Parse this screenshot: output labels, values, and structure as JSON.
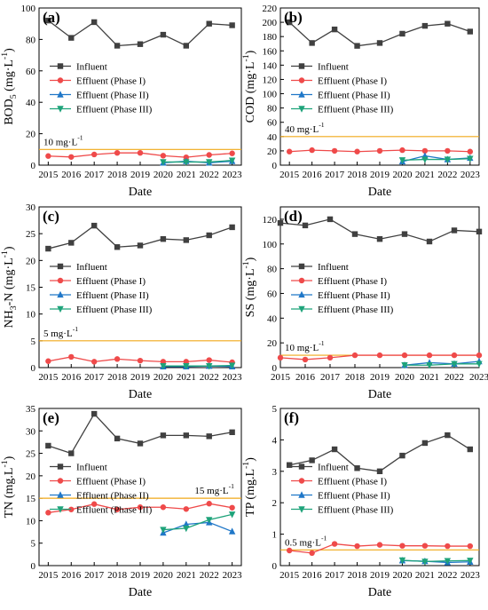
{
  "figure": {
    "x_label": "Date",
    "legend_items": [
      "Influent",
      "Effluent (Phase I)",
      "Effluent (Phase II)",
      "Effluent (Phase III)"
    ],
    "series_colors": {
      "Influent": "#404040",
      "Effluent (Phase I)": "#ef4a4a",
      "Effluent (Phase II)": "#1f77c8",
      "Effluent (Phase III)": "#1ea37a",
      "limit": "#f0a818"
    }
  },
  "chart_data": [
    {
      "type": "line",
      "panel_label": "(a)",
      "ylabel": "BOD5 (mg·L-1)",
      "xlabel": "Date",
      "x": [
        2015,
        2016,
        2017,
        2018,
        2019,
        2020,
        2021,
        2022,
        2023
      ],
      "xlim": [
        2014.6,
        2023.4
      ],
      "ylim": [
        0,
        100
      ],
      "yticks": [
        0,
        20,
        40,
        60,
        80,
        100
      ],
      "limit": {
        "value": 10,
        "label": "10 mg·L-1"
      },
      "legend_position": "center-left",
      "series": [
        {
          "name": "Influent",
          "marker": "square",
          "values": [
            92,
            81,
            91,
            76,
            77,
            83,
            76,
            90,
            89
          ]
        },
        {
          "name": "Effluent (Phase I)",
          "marker": "circle",
          "values": [
            5.8,
            5.2,
            6.8,
            7.8,
            7.8,
            6,
            5,
            6.5,
            7.5
          ]
        },
        {
          "name": "Effluent (Phase II)",
          "marker": "triangle-up",
          "values": [
            null,
            null,
            null,
            null,
            null,
            1.5,
            2.5,
            1.5,
            2.5
          ]
        },
        {
          "name": "Effluent (Phase III)",
          "marker": "triangle-down",
          "values": [
            null,
            null,
            null,
            null,
            null,
            2,
            2,
            2,
            3
          ]
        }
      ]
    },
    {
      "type": "line",
      "panel_label": "(b)",
      "ylabel": "COD (mg·L-1)",
      "xlabel": "Date",
      "x": [
        2015,
        2016,
        2017,
        2018,
        2019,
        2020,
        2021,
        2022,
        2023
      ],
      "xlim": [
        2014.6,
        2023.4
      ],
      "ylim": [
        0,
        220
      ],
      "yticks": [
        0,
        20,
        40,
        60,
        80,
        100,
        120,
        140,
        160,
        180,
        200,
        220
      ],
      "limit": {
        "value": 40,
        "label": "40 mg·L-1"
      },
      "legend_position": "center-left",
      "series": [
        {
          "name": "Influent",
          "marker": "square",
          "values": [
            200,
            171,
            190,
            167,
            171,
            184,
            195,
            198,
            187
          ]
        },
        {
          "name": "Effluent (Phase I)",
          "marker": "circle",
          "values": [
            19,
            21,
            20,
            19,
            20,
            21,
            20,
            20,
            19
          ]
        },
        {
          "name": "Effluent (Phase II)",
          "marker": "triangle-up",
          "values": [
            null,
            null,
            null,
            null,
            null,
            5,
            13,
            8,
            10
          ]
        },
        {
          "name": "Effluent (Phase III)",
          "marker": "triangle-down",
          "values": [
            null,
            null,
            null,
            null,
            null,
            7,
            8,
            8,
            9
          ]
        }
      ]
    },
    {
      "type": "line",
      "panel_label": "(c)",
      "ylabel": "NH3-N (mg·L-1)",
      "xlabel": "Date",
      "x": [
        2015,
        2016,
        2017,
        2018,
        2019,
        2020,
        2021,
        2022,
        2023
      ],
      "xlim": [
        2014.6,
        2023.4
      ],
      "ylim": [
        0,
        30
      ],
      "yticks": [
        0,
        5,
        10,
        15,
        20,
        25,
        30
      ],
      "limit": {
        "value": 5,
        "label": "5 mg·L-1"
      },
      "legend_position": "center-left",
      "series": [
        {
          "name": "Influent",
          "marker": "square",
          "values": [
            22.2,
            23.3,
            26.5,
            22.5,
            22.8,
            24,
            23.8,
            24.7,
            26.2
          ]
        },
        {
          "name": "Effluent (Phase I)",
          "marker": "circle",
          "values": [
            1.2,
            2,
            1.1,
            1.6,
            1.3,
            1.1,
            1.1,
            1.4,
            1
          ]
        },
        {
          "name": "Effluent (Phase II)",
          "marker": "triangle-up",
          "values": [
            null,
            null,
            null,
            null,
            null,
            0.2,
            0.2,
            0.3,
            0.2
          ]
        },
        {
          "name": "Effluent (Phase III)",
          "marker": "triangle-down",
          "values": [
            null,
            null,
            null,
            null,
            null,
            0.3,
            0.3,
            0.3,
            0.4
          ]
        }
      ]
    },
    {
      "type": "line",
      "panel_label": "(d)",
      "ylabel": "SS (mg·L-1)",
      "xlabel": "Date",
      "x": [
        2015,
        2016,
        2017,
        2018,
        2019,
        2020,
        2021,
        2022,
        2023
      ],
      "xlim": [
        2015,
        2023
      ],
      "ylim": [
        0,
        130
      ],
      "yticks": [
        0,
        20,
        40,
        60,
        80,
        100,
        120
      ],
      "limit": {
        "value": 10,
        "label": "10 mg·L-1"
      },
      "legend_position": "center-left",
      "series": [
        {
          "name": "Influent",
          "marker": "square",
          "values": [
            117,
            115,
            120,
            108,
            104,
            108,
            102,
            111,
            110
          ]
        },
        {
          "name": "Effluent (Phase I)",
          "marker": "circle",
          "values": [
            8,
            6.5,
            8,
            10,
            10,
            10,
            10,
            10,
            10
          ]
        },
        {
          "name": "Effluent (Phase II)",
          "marker": "triangle-up",
          "values": [
            null,
            null,
            null,
            null,
            null,
            2,
            4,
            3,
            5
          ]
        },
        {
          "name": "Effluent (Phase III)",
          "marker": "triangle-down",
          "values": [
            null,
            null,
            null,
            null,
            null,
            2,
            2,
            3,
            3
          ]
        }
      ]
    },
    {
      "type": "line",
      "panel_label": "(e)",
      "ylabel": "TN (mg.L-1)",
      "xlabel": "Date",
      "x": [
        2015,
        2016,
        2017,
        2018,
        2019,
        2020,
        2021,
        2022,
        2023
      ],
      "xlim": [
        2014.6,
        2023.4
      ],
      "ylim": [
        0,
        35
      ],
      "yticks": [
        0,
        5,
        10,
        15,
        20,
        25,
        30,
        35
      ],
      "limit": {
        "value": 15,
        "label": "15 mg·L-1"
      },
      "legend_position": "center-left",
      "series": [
        {
          "name": "Influent",
          "marker": "square",
          "values": [
            26.7,
            25,
            33.8,
            28.3,
            27.2,
            29,
            29,
            28.8,
            29.7
          ]
        },
        {
          "name": "Effluent (Phase I)",
          "marker": "circle",
          "values": [
            11.8,
            12.5,
            13.7,
            12.5,
            13,
            13,
            12.6,
            13.8,
            12.9
          ]
        },
        {
          "name": "Effluent (Phase II)",
          "marker": "triangle-up",
          "values": [
            null,
            null,
            null,
            null,
            null,
            7.3,
            9.2,
            9.6,
            7.6
          ]
        },
        {
          "name": "Effluent (Phase III)",
          "marker": "triangle-down",
          "values": [
            null,
            null,
            null,
            null,
            null,
            8,
            8.3,
            10.2,
            11.4
          ]
        }
      ]
    },
    {
      "type": "line",
      "panel_label": "(f)",
      "ylabel": "TP (mg.L-1)",
      "xlabel": "Date",
      "x": [
        2015,
        2016,
        2017,
        2018,
        2019,
        2020,
        2021,
        2022,
        2023
      ],
      "xlim": [
        2014.6,
        2023.4
      ],
      "ylim": [
        0,
        5
      ],
      "yticks": [
        0,
        1,
        2,
        3,
        4,
        5
      ],
      "limit": {
        "value": 0.5,
        "label": "0.5 mg·L-1"
      },
      "legend_position": "center-left",
      "series": [
        {
          "name": "Influent",
          "marker": "square",
          "values": [
            3.2,
            3.35,
            3.7,
            3.1,
            3,
            3.5,
            3.9,
            4.15,
            3.7
          ]
        },
        {
          "name": "Effluent (Phase I)",
          "marker": "circle",
          "values": [
            0.48,
            0.4,
            0.69,
            0.62,
            0.66,
            0.63,
            0.63,
            0.62,
            0.62
          ]
        },
        {
          "name": "Effluent (Phase II)",
          "marker": "triangle-up",
          "values": [
            null,
            null,
            null,
            null,
            null,
            0.16,
            0.14,
            0.1,
            0.12
          ]
        },
        {
          "name": "Effluent (Phase III)",
          "marker": "triangle-down",
          "values": [
            null,
            null,
            null,
            null,
            null,
            0.17,
            0.13,
            0.15,
            0.16
          ]
        }
      ]
    }
  ]
}
